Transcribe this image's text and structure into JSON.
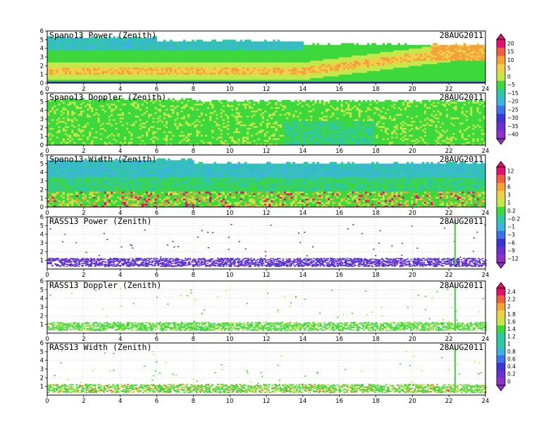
{
  "chart_data": {
    "type": "heatmap",
    "date": "28AUG2011",
    "x": {
      "range": [
        0,
        24
      ],
      "ticks": [
        0,
        2,
        4,
        6,
        8,
        10,
        12,
        14,
        16,
        18,
        20,
        22,
        24
      ]
    },
    "y": {
      "range": [
        0,
        6
      ],
      "ticks": [
        0,
        1,
        2,
        3,
        4,
        5,
        6
      ]
    },
    "grid": "dotted",
    "panels": [
      {
        "title": "Spano13 Power (Zenith)",
        "date": "28AUG2011",
        "kind": "power",
        "show_y0": true,
        "colorbar": "cb1"
      },
      {
        "title": "Spano13 Doppler (Zenith)",
        "date": "28AUG2011",
        "kind": "doppler",
        "show_y0": true,
        "colorbar": null
      },
      {
        "title": "Spano13 Width (Zenith)",
        "date": "28AUG2011",
        "kind": "width",
        "show_y0": true,
        "colorbar": "cb2"
      },
      {
        "title": "RASS13 Power (Zenith)",
        "date": "28AUG2011",
        "kind": "rass_power",
        "show_y0": false,
        "colorbar": null
      },
      {
        "title": "RASS13 Doppler (Zenith)",
        "date": "28AUG2011",
        "kind": "rass_doppler",
        "show_y0": false,
        "colorbar": "cb3"
      },
      {
        "title": "RASS13 Width (Zenith)",
        "date": "28AUG2011",
        "kind": "rass_width",
        "show_y0": false,
        "colorbar": null
      }
    ],
    "colorbars": {
      "cb1": {
        "labels": [
          "20",
          "15",
          "10",
          "5",
          "0",
          "−5",
          "−15",
          "−20",
          "−25",
          "−30",
          "−35",
          "−40"
        ]
      },
      "cb2": {
        "labels": [
          "12",
          "9",
          "6",
          "3",
          "1",
          "0.2",
          "−0.2",
          "−1",
          "−3",
          "−6",
          "−9",
          "−12"
        ]
      },
      "cb3": {
        "labels": [
          "2.4",
          "2.2",
          "2",
          "1.8",
          "1.6",
          "1.4",
          "1.2",
          "1",
          "0.8",
          "0.6",
          "0.4",
          "0.2",
          "0"
        ]
      }
    },
    "colors": [
      "#e0126e",
      "#f06040",
      "#f4a23c",
      "#f0d048",
      "#c4e84c",
      "#3cd83c",
      "#30c8a0",
      "#3cb4dc",
      "#3a74e8",
      "#3c34d4",
      "#6c30d0",
      "#9030c8"
    ]
  }
}
